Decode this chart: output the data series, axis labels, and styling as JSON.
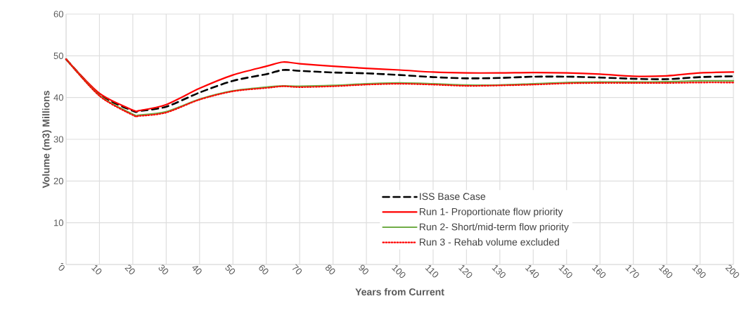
{
  "chart_data": {
    "type": "line",
    "xlabel": "Years from Current",
    "ylabel": "Volume (m3)   Millions",
    "x": [
      0,
      10,
      20,
      22,
      30,
      40,
      50,
      60,
      65,
      70,
      80,
      90,
      100,
      110,
      120,
      130,
      140,
      150,
      160,
      170,
      180,
      190,
      200
    ],
    "series": [
      {
        "name": "ISS Base Case",
        "color": "#000000",
        "line_style": "dashed",
        "values": [
          49.2,
          40.8,
          36.8,
          36.8,
          37.8,
          41.2,
          44.0,
          45.6,
          46.6,
          46.4,
          46.0,
          45.8,
          45.4,
          44.9,
          44.6,
          44.7,
          45.0,
          45.0,
          44.8,
          44.5,
          44.4,
          44.9,
          45.1
        ]
      },
      {
        "name": "Run 1- Proportionate flow priority",
        "color": "#ff0000",
        "line_style": "solid",
        "values": [
          49.2,
          41.0,
          37.0,
          36.9,
          38.3,
          42.2,
          45.4,
          47.5,
          48.5,
          48.1,
          47.5,
          47.0,
          46.6,
          46.1,
          45.9,
          45.9,
          46.0,
          45.9,
          45.6,
          45.1,
          45.2,
          45.9,
          46.1
        ]
      },
      {
        "name": "Run 2- Short/mid-term flow priority",
        "color": "#70ad47",
        "line_style": "solid",
        "values": [
          49.2,
          40.5,
          36.0,
          35.8,
          36.6,
          39.6,
          41.6,
          42.5,
          42.8,
          42.7,
          42.9,
          43.3,
          43.5,
          43.3,
          43.0,
          43.0,
          43.3,
          43.6,
          43.7,
          43.7,
          43.8,
          44.0,
          44.0
        ]
      },
      {
        "name": "Run 3 - Rehab volume excluded",
        "color": "#ff0000",
        "line_style": "dotted",
        "values": [
          49.2,
          40.4,
          35.8,
          35.6,
          36.4,
          39.5,
          41.5,
          42.3,
          42.7,
          42.5,
          42.7,
          43.1,
          43.3,
          43.1,
          42.8,
          42.9,
          43.1,
          43.4,
          43.5,
          43.5,
          43.5,
          43.6,
          43.6
        ]
      }
    ],
    "xlim": [
      0,
      200
    ],
    "xticks": [
      0,
      10,
      20,
      30,
      40,
      50,
      60,
      70,
      80,
      90,
      100,
      110,
      120,
      130,
      140,
      150,
      160,
      170,
      180,
      190,
      200
    ],
    "ylim": [
      0,
      60
    ],
    "yticks": [
      {
        "value": 0,
        "label": "-"
      },
      10,
      20,
      30,
      40,
      50,
      60
    ],
    "grid": true,
    "legend": "bottom"
  }
}
